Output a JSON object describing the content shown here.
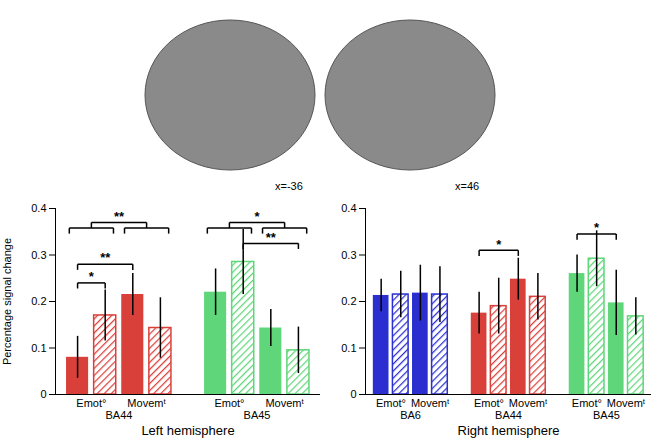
{
  "chart_data": [
    {
      "type": "bar",
      "title": "Left hemisphere",
      "ylabel": "Percentage signal change",
      "ylim": [
        0,
        0.4
      ],
      "yticks": [
        0,
        0.1,
        0.2,
        0.3,
        0.4
      ],
      "categories": [
        "Emot°",
        "Emot°",
        "Movemᵗ",
        "Movemᵗ"
      ],
      "bar_styles": [
        "solid",
        "hatched",
        "solid",
        "hatched"
      ],
      "series": [
        {
          "name": "BA44",
          "color": "#d9403a",
          "values": [
            0.08,
            0.17,
            0.215,
            0.143
          ],
          "errors": [
            0.045,
            0.055,
            0.045,
            0.065
          ]
        },
        {
          "name": "BA45",
          "color": "#5fd67a",
          "values": [
            0.22,
            0.285,
            0.143,
            0.095
          ],
          "errors": [
            0.05,
            0.07,
            0.04,
            0.05
          ]
        }
      ],
      "significance": [
        {
          "series": "BA44",
          "from": [
            0,
            1
          ],
          "to": [
            2,
            3
          ],
          "y": 0.37,
          "label": "**"
        },
        {
          "series": "BA44",
          "from": [
            0
          ],
          "to": [
            1
          ],
          "y": 0.24,
          "label": "*"
        },
        {
          "series": "BA44",
          "from": [
            0
          ],
          "to": [
            2
          ],
          "y": 0.28,
          "label": "**"
        },
        {
          "series": "BA45",
          "from": [
            0,
            1
          ],
          "to": [
            2,
            3
          ],
          "y": 0.37,
          "label": "*"
        },
        {
          "series": "BA45",
          "from": [
            1
          ],
          "to": [
            3
          ],
          "y": 0.325,
          "label": "**"
        }
      ],
      "annotations": [
        "x=-36"
      ]
    },
    {
      "type": "bar",
      "title": "Right hemisphere",
      "ylim": [
        0,
        0.4
      ],
      "yticks": [
        0,
        0.1,
        0.2,
        0.3,
        0.4
      ],
      "categories": [
        "Emot°",
        "Emot°",
        "Movemᵗ",
        "Movemᵗ"
      ],
      "bar_styles": [
        "solid",
        "hatched",
        "solid",
        "hatched"
      ],
      "series": [
        {
          "name": "BA6",
          "color": "#2b2fd0",
          "values": [
            0.213,
            0.215,
            0.218,
            0.215
          ],
          "errors": [
            0.035,
            0.05,
            0.06,
            0.06
          ]
        },
        {
          "name": "BA44",
          "color": "#d9403a",
          "values": [
            0.175,
            0.19,
            0.248,
            0.21
          ],
          "errors": [
            0.045,
            0.06,
            0.045,
            0.05
          ]
        },
        {
          "name": "BA45",
          "color": "#5fd67a",
          "values": [
            0.26,
            0.292,
            0.197,
            0.168
          ],
          "errors": [
            0.04,
            0.06,
            0.07,
            0.04
          ]
        }
      ],
      "significance": [
        {
          "series": "BA44",
          "from": [
            0
          ],
          "to": [
            2
          ],
          "y": 0.31,
          "label": "*"
        },
        {
          "series": "BA45",
          "from": [
            0
          ],
          "to": [
            2
          ],
          "y": 0.345,
          "label": "*"
        }
      ],
      "annotations": [
        "x=46"
      ]
    }
  ]
}
